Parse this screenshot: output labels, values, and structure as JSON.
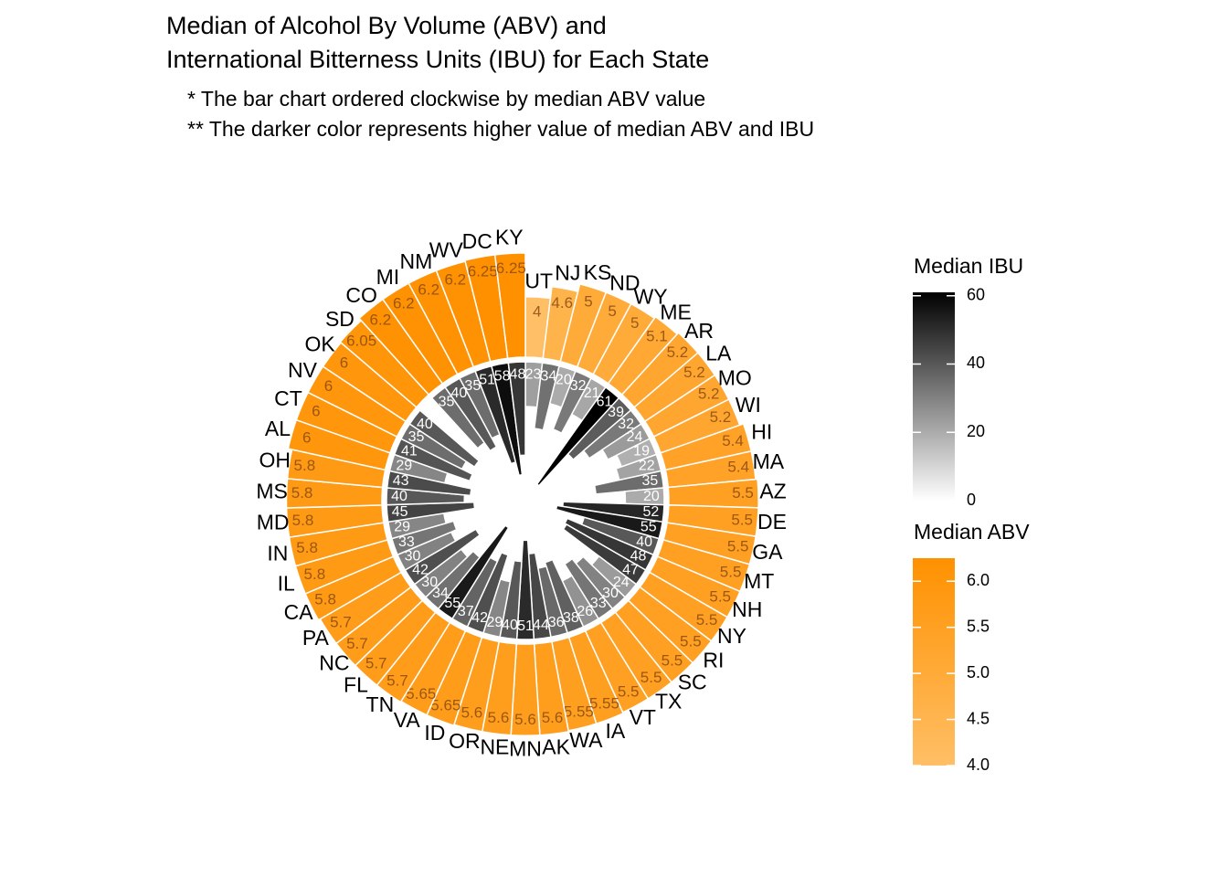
{
  "chart_data": {
    "type": "polar-bar",
    "title": [
      "Median of Alcohol By Volume (ABV) and",
      "International Bitterness Units (IBU) for Each State"
    ],
    "subtitle": [
      "* The bar chart ordered clockwise by median ABV value",
      "** The darker color represents higher value of median ABV and IBU"
    ],
    "categories": [
      "UT",
      "NJ",
      "KS",
      "ND",
      "WY",
      "ME",
      "AR",
      "LA",
      "MO",
      "WI",
      "HI",
      "MA",
      "AZ",
      "DE",
      "GA",
      "MT",
      "NH",
      "NY",
      "RI",
      "SC",
      "TX",
      "VT",
      "IA",
      "WA",
      "AK",
      "MN",
      "NE",
      "OR",
      "ID",
      "VA",
      "TN",
      "FL",
      "NC",
      "PA",
      "CA",
      "IL",
      "IN",
      "MD",
      "MS",
      "OH",
      "AL",
      "CT",
      "NV",
      "OK",
      "SD",
      "CO",
      "MI",
      "NM",
      "WV",
      "DC",
      "KY"
    ],
    "series": [
      {
        "name": "Median ABV",
        "color_low": "#ffbf66",
        "color_high": "#ff9100",
        "limits": [
          4,
          6.25
        ],
        "ticks": [
          {
            "value": 4,
            "label": "4.0"
          },
          4.5,
          {
            "value": 5,
            "label": "5.0"
          },
          5.5,
          {
            "value": 6,
            "label": "6.0"
          }
        ],
        "values": [
          4,
          4.6,
          5,
          5,
          5,
          5.1,
          5.2,
          5.2,
          5.2,
          5.2,
          5.4,
          5.4,
          5.5,
          5.5,
          5.5,
          5.5,
          5.5,
          5.5,
          5.5,
          5.5,
          5.5,
          5.5,
          5.55,
          5.55,
          5.6,
          5.6,
          5.6,
          5.6,
          5.65,
          5.65,
          5.7,
          5.7,
          5.7,
          5.7,
          5.8,
          5.8,
          5.8,
          5.8,
          5.8,
          5.8,
          6,
          6,
          6,
          6,
          6.05,
          6.2,
          6.2,
          6.2,
          6.2,
          6.25,
          6.25
        ]
      },
      {
        "name": "Median IBU",
        "color_low": "#ffffff",
        "color_high": "#000000",
        "limits": [
          0,
          61
        ],
        "ticks": [
          0,
          20,
          40,
          60
        ],
        "values": [
          23,
          34,
          20,
          32,
          21,
          61,
          39,
          32,
          24,
          19,
          22,
          35,
          20,
          52,
          55,
          40,
          48,
          47,
          24,
          30,
          33,
          26,
          38,
          36,
          44,
          51,
          40,
          29,
          42,
          37,
          55,
          34,
          30,
          42,
          30,
          33,
          29,
          45,
          40,
          43,
          29,
          41,
          35,
          40,
          null,
          35,
          40,
          35,
          51,
          58,
          48
        ]
      }
    ]
  }
}
